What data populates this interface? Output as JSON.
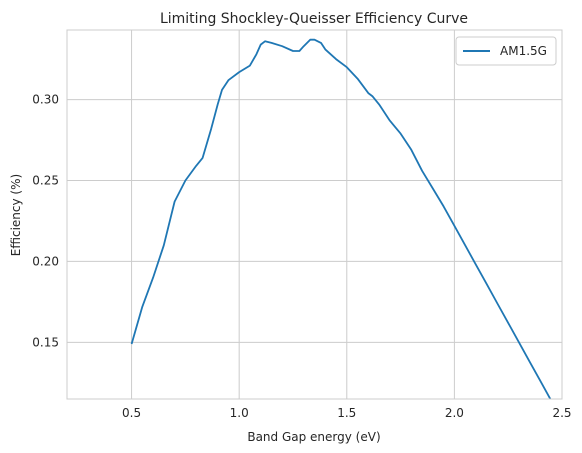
{
  "chart_data": {
    "type": "line",
    "title": "Limiting Shockley-Queisser Efficiency Curve",
    "xlabel": "Band Gap energy (eV)",
    "ylabel": "Efficiency (%)",
    "xlim": [
      0.2,
      2.5
    ],
    "ylim": [
      0.115,
      0.343
    ],
    "xticks": [
      0.5,
      1.0,
      1.5,
      2.0,
      2.5
    ],
    "xtick_labels": [
      "0.5",
      "1.0",
      "1.5",
      "2.0",
      "2.5"
    ],
    "yticks": [
      0.15,
      0.2,
      0.25,
      0.3
    ],
    "ytick_labels": [
      "0.15",
      "0.20",
      "0.25",
      "0.30"
    ],
    "grid": true,
    "legend": "top-right",
    "series": [
      {
        "name": "AM1.5G",
        "color": "#1f77b4",
        "x": [
          0.5,
          0.55,
          0.6,
          0.65,
          0.7,
          0.75,
          0.8,
          0.83,
          0.87,
          0.9,
          0.92,
          0.95,
          1.0,
          1.05,
          1.08,
          1.1,
          1.12,
          1.15,
          1.2,
          1.25,
          1.28,
          1.3,
          1.33,
          1.35,
          1.38,
          1.4,
          1.45,
          1.5,
          1.55,
          1.6,
          1.62,
          1.65,
          1.7,
          1.75,
          1.8,
          1.85,
          1.9,
          1.95,
          2.0,
          2.05,
          2.1,
          2.15,
          2.2,
          2.25,
          2.3,
          2.35,
          2.4,
          2.45,
          2.5
        ],
        "y": [
          0.149,
          0.172,
          0.19,
          0.21,
          0.237,
          0.25,
          0.259,
          0.264,
          0.282,
          0.297,
          0.306,
          0.312,
          0.317,
          0.321,
          0.328,
          0.334,
          0.336,
          0.335,
          0.333,
          0.33,
          0.33,
          0.333,
          0.337,
          0.337,
          0.335,
          0.331,
          0.325,
          0.32,
          0.313,
          0.304,
          0.302,
          0.297,
          0.287,
          0.279,
          0.269,
          0.256,
          0.245,
          0.234,
          0.222,
          0.21,
          0.198,
          0.186,
          0.174,
          0.162,
          0.15,
          0.138,
          0.126,
          0.114,
          0.101
        ]
      }
    ]
  }
}
